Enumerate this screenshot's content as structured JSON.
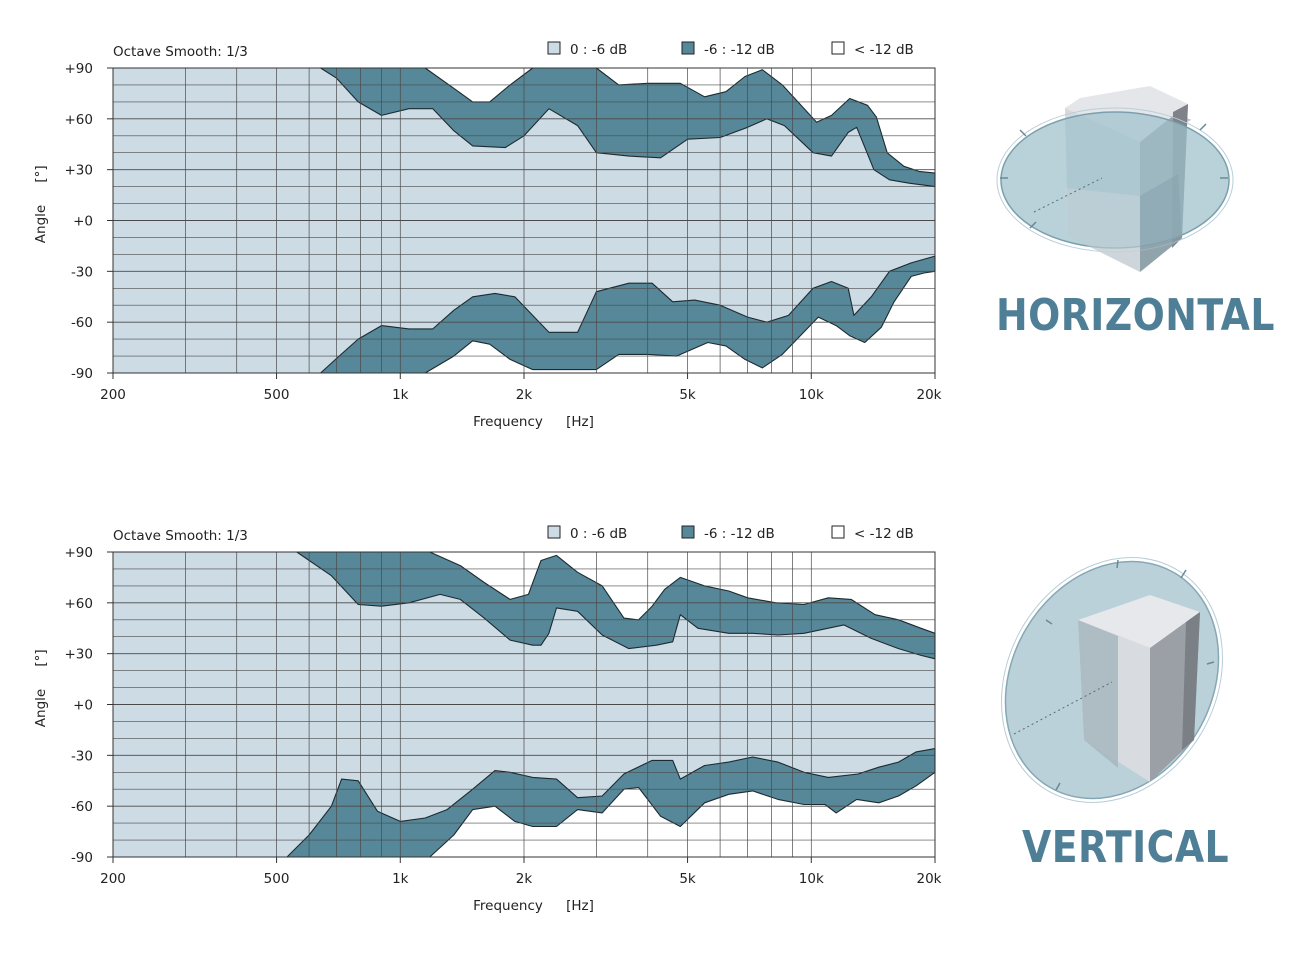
{
  "colors": {
    "band_light": "#cddbe4",
    "band_dark": "#568899",
    "band_none": "#ffffff",
    "grid": "#4a4a4a",
    "accent_title": "#4f7f96"
  },
  "legend": {
    "light_label": "0 : -6 dB",
    "dark_label": "-6 : -12 dB",
    "none_label": "< -12 dB"
  },
  "chart_data": [
    {
      "type": "area",
      "smoothing": "Octave Smooth: 1/3",
      "title": "HORIZONTAL",
      "xlabel": "Frequency",
      "xunit": "[Hz]",
      "ylabel": "Angle",
      "yunit": "[°]",
      "xscale": "log",
      "xlim": [
        200,
        20000
      ],
      "ylim": [
        -90,
        90
      ],
      "xticks": [
        {
          "v": 200,
          "label": "200"
        },
        {
          "v": 500,
          "label": "500"
        },
        {
          "v": 1000,
          "label": "1k"
        },
        {
          "v": 2000,
          "label": "2k"
        },
        {
          "v": 5000,
          "label": "5k"
        },
        {
          "v": 10000,
          "label": "10k"
        },
        {
          "v": 20000,
          "label": "20k"
        }
      ],
      "yticks": [
        {
          "v": 90,
          "label": "+90"
        },
        {
          "v": 60,
          "label": "+60"
        },
        {
          "v": 30,
          "label": "+30"
        },
        {
          "v": 0,
          "label": "+0"
        },
        {
          "v": -30,
          "label": "-30"
        },
        {
          "v": -60,
          "label": "-60"
        },
        {
          "v": -90,
          "label": "-90"
        }
      ],
      "bands": {
        "upper_outer": [
          [
            640,
            90
          ],
          [
            1150,
            90
          ],
          [
            1350,
            78
          ],
          [
            1500,
            70
          ],
          [
            1650,
            70
          ],
          [
            1850,
            80
          ],
          [
            2100,
            90
          ],
          [
            3000,
            90
          ],
          [
            3400,
            80
          ],
          [
            4000,
            81
          ],
          [
            4800,
            81
          ],
          [
            5500,
            73
          ],
          [
            6200,
            76
          ],
          [
            6900,
            85
          ],
          [
            7600,
            89
          ],
          [
            8500,
            80
          ],
          [
            10300,
            58
          ],
          [
            11200,
            62
          ],
          [
            12400,
            72
          ],
          [
            13700,
            68
          ],
          [
            14400,
            61
          ],
          [
            15300,
            40
          ],
          [
            16800,
            32
          ],
          [
            18300,
            29
          ],
          [
            20000,
            28
          ]
        ],
        "upper_inner": [
          [
            640,
            90
          ],
          [
            700,
            84
          ],
          [
            790,
            70
          ],
          [
            900,
            62
          ],
          [
            1050,
            66
          ],
          [
            1200,
            66
          ],
          [
            1350,
            53
          ],
          [
            1500,
            44
          ],
          [
            1800,
            43
          ],
          [
            2000,
            50
          ],
          [
            2300,
            66
          ],
          [
            2700,
            56
          ],
          [
            3000,
            40
          ],
          [
            3600,
            38
          ],
          [
            4300,
            37
          ],
          [
            5000,
            48
          ],
          [
            6000,
            49
          ],
          [
            7000,
            55
          ],
          [
            7800,
            60
          ],
          [
            8600,
            56
          ],
          [
            10100,
            40
          ],
          [
            11200,
            38
          ],
          [
            12300,
            52
          ],
          [
            12900,
            55
          ],
          [
            14200,
            30
          ],
          [
            15500,
            24
          ],
          [
            17300,
            22
          ],
          [
            20000,
            20
          ]
        ],
        "lower_outer": [
          [
            640,
            -90
          ],
          [
            1150,
            -90
          ],
          [
            1350,
            -80
          ],
          [
            1500,
            -71
          ],
          [
            1650,
            -73
          ],
          [
            1850,
            -82
          ],
          [
            2100,
            -88
          ],
          [
            3000,
            -88
          ],
          [
            3400,
            -79
          ],
          [
            4000,
            -79
          ],
          [
            4700,
            -80
          ],
          [
            5600,
            -72
          ],
          [
            6200,
            -74
          ],
          [
            6900,
            -82
          ],
          [
            7600,
            -87
          ],
          [
            8500,
            -79
          ],
          [
            10400,
            -57
          ],
          [
            11500,
            -62
          ],
          [
            12400,
            -68
          ],
          [
            13500,
            -72
          ],
          [
            14800,
            -63
          ],
          [
            15900,
            -48
          ],
          [
            17500,
            -33
          ],
          [
            18800,
            -31
          ],
          [
            20000,
            -30
          ]
        ],
        "lower_inner": [
          [
            640,
            -90
          ],
          [
            710,
            -80
          ],
          [
            790,
            -70
          ],
          [
            900,
            -62
          ],
          [
            1050,
            -64
          ],
          [
            1200,
            -64
          ],
          [
            1350,
            -53
          ],
          [
            1500,
            -45
          ],
          [
            1700,
            -43
          ],
          [
            1900,
            -45
          ],
          [
            2300,
            -66
          ],
          [
            2700,
            -66
          ],
          [
            3000,
            -42
          ],
          [
            3600,
            -37
          ],
          [
            4100,
            -37
          ],
          [
            4600,
            -48
          ],
          [
            5200,
            -47
          ],
          [
            6000,
            -50
          ],
          [
            7000,
            -57
          ],
          [
            7800,
            -60
          ],
          [
            8800,
            -56
          ],
          [
            10100,
            -40
          ],
          [
            11200,
            -36
          ],
          [
            12300,
            -40
          ],
          [
            12700,
            -56
          ],
          [
            14000,
            -45
          ],
          [
            15500,
            -30
          ],
          [
            17500,
            -25
          ],
          [
            20000,
            -21
          ]
        ]
      }
    },
    {
      "type": "area",
      "smoothing": "Octave Smooth: 1/3",
      "title": "VERTICAL",
      "xlabel": "Frequency",
      "xunit": "[Hz]",
      "ylabel": "Angle",
      "yunit": "[°]",
      "xscale": "log",
      "xlim": [
        200,
        20000
      ],
      "ylim": [
        -90,
        90
      ],
      "xticks": [
        {
          "v": 200,
          "label": "200"
        },
        {
          "v": 500,
          "label": "500"
        },
        {
          "v": 1000,
          "label": "1k"
        },
        {
          "v": 2000,
          "label": "2k"
        },
        {
          "v": 5000,
          "label": "5k"
        },
        {
          "v": 10000,
          "label": "10k"
        },
        {
          "v": 20000,
          "label": "20k"
        }
      ],
      "yticks": [
        {
          "v": 90,
          "label": "+90"
        },
        {
          "v": 60,
          "label": "+60"
        },
        {
          "v": 30,
          "label": "+30"
        },
        {
          "v": 0,
          "label": "+0"
        },
        {
          "v": -30,
          "label": "-30"
        },
        {
          "v": -60,
          "label": "-60"
        },
        {
          "v": -90,
          "label": "-90"
        }
      ],
      "bands": {
        "upper_outer": [
          [
            560,
            90
          ],
          [
            1180,
            90
          ],
          [
            1400,
            82
          ],
          [
            1600,
            72
          ],
          [
            1850,
            62
          ],
          [
            2050,
            65
          ],
          [
            2200,
            85
          ],
          [
            2400,
            88
          ],
          [
            2700,
            78
          ],
          [
            3100,
            70
          ],
          [
            3500,
            51
          ],
          [
            3800,
            50
          ],
          [
            4100,
            58
          ],
          [
            4400,
            68
          ],
          [
            4800,
            75
          ],
          [
            5500,
            70
          ],
          [
            6300,
            67
          ],
          [
            7000,
            63
          ],
          [
            8200,
            60
          ],
          [
            9600,
            59
          ],
          [
            11000,
            63
          ],
          [
            12500,
            62
          ],
          [
            14300,
            53
          ],
          [
            16300,
            50
          ],
          [
            18500,
            45
          ],
          [
            20000,
            42
          ]
        ],
        "upper_inner": [
          [
            560,
            90
          ],
          [
            680,
            76
          ],
          [
            790,
            59
          ],
          [
            900,
            58
          ],
          [
            1050,
            60
          ],
          [
            1250,
            65
          ],
          [
            1400,
            62
          ],
          [
            1600,
            51
          ],
          [
            1850,
            38
          ],
          [
            2100,
            35
          ],
          [
            2200,
            35
          ],
          [
            2300,
            42
          ],
          [
            2400,
            57
          ],
          [
            2700,
            55
          ],
          [
            3100,
            41
          ],
          [
            3600,
            33
          ],
          [
            4200,
            35
          ],
          [
            4600,
            37
          ],
          [
            4800,
            53
          ],
          [
            5300,
            45
          ],
          [
            6300,
            42
          ],
          [
            7200,
            42
          ],
          [
            8300,
            41
          ],
          [
            9600,
            42
          ],
          [
            12000,
            47
          ],
          [
            14000,
            39
          ],
          [
            16300,
            33
          ],
          [
            18500,
            29
          ],
          [
            20000,
            27
          ]
        ],
        "lower_outer": [
          [
            530,
            -90
          ],
          [
            1180,
            -90
          ],
          [
            1350,
            -77
          ],
          [
            1500,
            -62
          ],
          [
            1700,
            -60
          ],
          [
            1900,
            -69
          ],
          [
            2100,
            -72
          ],
          [
            2400,
            -72
          ],
          [
            2700,
            -62
          ],
          [
            3100,
            -64
          ],
          [
            3500,
            -50
          ],
          [
            3800,
            -49
          ],
          [
            4300,
            -66
          ],
          [
            4800,
            -72
          ],
          [
            5500,
            -58
          ],
          [
            6300,
            -53
          ],
          [
            7200,
            -51
          ],
          [
            8300,
            -56
          ],
          [
            9600,
            -59
          ],
          [
            10800,
            -59
          ],
          [
            11500,
            -64
          ],
          [
            12900,
            -56
          ],
          [
            14600,
            -58
          ],
          [
            16300,
            -54
          ],
          [
            18000,
            -48
          ],
          [
            20000,
            -40
          ]
        ],
        "lower_inner": [
          [
            530,
            -90
          ],
          [
            600,
            -77
          ],
          [
            680,
            -60
          ],
          [
            720,
            -44
          ],
          [
            790,
            -45
          ],
          [
            880,
            -63
          ],
          [
            1000,
            -69
          ],
          [
            1150,
            -67
          ],
          [
            1300,
            -62
          ],
          [
            1500,
            -50
          ],
          [
            1700,
            -39
          ],
          [
            1850,
            -40
          ],
          [
            2100,
            -43
          ],
          [
            2400,
            -44
          ],
          [
            2700,
            -55
          ],
          [
            3100,
            -54
          ],
          [
            3500,
            -41
          ],
          [
            4100,
            -33
          ],
          [
            4600,
            -33
          ],
          [
            4800,
            -44
          ],
          [
            5500,
            -36
          ],
          [
            6300,
            -34
          ],
          [
            7200,
            -31
          ],
          [
            8300,
            -34
          ],
          [
            9600,
            -40
          ],
          [
            11000,
            -43
          ],
          [
            13000,
            -41
          ],
          [
            14600,
            -37
          ],
          [
            16300,
            -34
          ],
          [
            18000,
            -28
          ],
          [
            20000,
            -26
          ]
        ]
      }
    }
  ]
}
